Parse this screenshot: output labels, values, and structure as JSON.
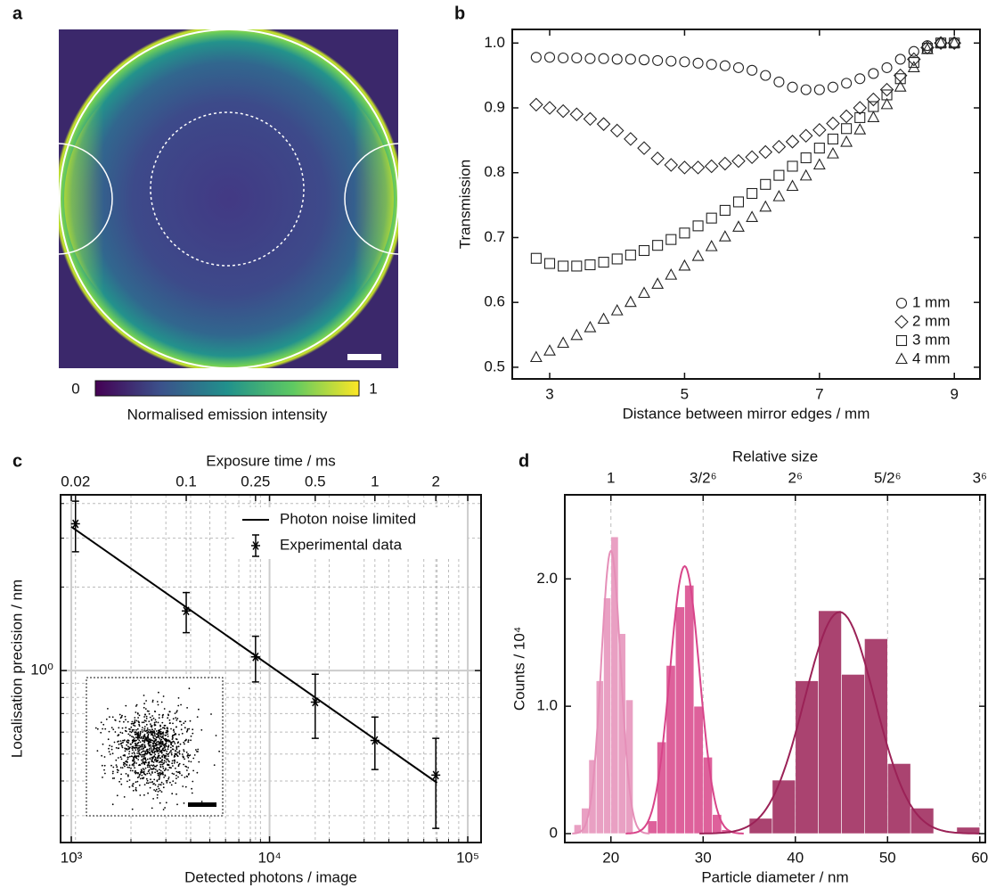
{
  "chart_data": [
    {
      "type": "heatmap",
      "panel_label": "a",
      "colorbar": {
        "ticks": [
          0,
          1
        ],
        "label": "Normalised emission intensity"
      }
    },
    {
      "type": "scatter",
      "panel_label": "b",
      "xlabel": "Distance between mirror edges / mm",
      "ylabel": "Transmission",
      "x": [
        2.8,
        3,
        3.2,
        3.4,
        3.6,
        3.8,
        4,
        4.2,
        4.4,
        4.6,
        4.8,
        5,
        5.2,
        5.4,
        5.6,
        5.8,
        6,
        6.2,
        6.4,
        6.6,
        6.8,
        7,
        7.2,
        7.4,
        7.6,
        7.8,
        8,
        8.2,
        8.4,
        8.6,
        8.8,
        9
      ],
      "series": [
        {
          "name": "1 mm",
          "marker": "circle",
          "color": "#222222",
          "values": [
            0.978,
            0.978,
            0.977,
            0.977,
            0.976,
            0.976,
            0.975,
            0.975,
            0.974,
            0.973,
            0.972,
            0.971,
            0.969,
            0.967,
            0.965,
            0.962,
            0.958,
            0.95,
            0.94,
            0.932,
            0.928,
            0.928,
            0.932,
            0.938,
            0.945,
            0.953,
            0.962,
            0.975,
            0.987,
            0.996,
            1,
            1
          ]
        },
        {
          "name": "2 mm",
          "marker": "diamond",
          "color": "#222222",
          "values": [
            0.905,
            0.9,
            0.895,
            0.89,
            0.883,
            0.875,
            0.865,
            0.852,
            0.838,
            0.822,
            0.812,
            0.808,
            0.808,
            0.81,
            0.814,
            0.818,
            0.824,
            0.832,
            0.84,
            0.848,
            0.857,
            0.866,
            0.876,
            0.887,
            0.9,
            0.913,
            0.928,
            0.95,
            0.975,
            0.993,
            1,
            1
          ]
        },
        {
          "name": "3 mm",
          "marker": "square",
          "color": "#222222",
          "values": [
            0.668,
            0.66,
            0.656,
            0.656,
            0.658,
            0.662,
            0.667,
            0.673,
            0.68,
            0.688,
            0.697,
            0.707,
            0.718,
            0.73,
            0.742,
            0.755,
            0.768,
            0.782,
            0.796,
            0.81,
            0.823,
            0.838,
            0.852,
            0.868,
            0.885,
            0.902,
            0.92,
            0.945,
            0.97,
            0.992,
            1,
            1
          ]
        },
        {
          "name": "4 mm",
          "marker": "triangle",
          "color": "#222222",
          "values": [
            0.515,
            0.525,
            0.537,
            0.549,
            0.561,
            0.574,
            0.587,
            0.6,
            0.614,
            0.628,
            0.642,
            0.656,
            0.671,
            0.686,
            0.701,
            0.716,
            0.731,
            0.747,
            0.763,
            0.779,
            0.795,
            0.812,
            0.829,
            0.847,
            0.866,
            0.885,
            0.905,
            0.932,
            0.962,
            0.99,
            1,
            1
          ]
        }
      ],
      "xlim": [
        2.445,
        9.38
      ],
      "xticks": [
        3,
        5,
        7,
        9
      ],
      "ylim": [
        0.482,
        1.021
      ],
      "yticks": [
        0.5,
        0.6,
        0.7,
        0.8,
        0.9,
        {
          "value": 1,
          "label": "1.0"
        }
      ],
      "legend": "lower right"
    },
    {
      "type": "errorbar",
      "panel_label": "c",
      "xlabel": "Detected photons / image",
      "ylabel": "Localisation precision / nm",
      "x2label": "Exposure time / ms",
      "xscale": "log",
      "yscale": "log",
      "grid": true,
      "xlim": [
        883,
        116700
      ],
      "xticks": [
        {
          "value": 1000,
          "label": "10³"
        },
        {
          "value": 10000,
          "label": "10⁴"
        },
        {
          "value": 100000,
          "label": "10⁵"
        }
      ],
      "xminorticks": [
        2000,
        3000,
        4000,
        5000,
        6000,
        7000,
        8000,
        9000,
        20000,
        30000,
        40000,
        50000,
        60000,
        70000,
        80000,
        90000
      ],
      "ylim": [
        0.24,
        4.3
      ],
      "yticks": [
        {
          "value": 1,
          "label": "10⁰"
        }
      ],
      "yminorticks": [
        0.3,
        0.4,
        0.5,
        0.6,
        0.7,
        0.8,
        0.9,
        2,
        3,
        4
      ],
      "series": [
        {
          "name": "Experimental data",
          "color": "#000000",
          "x": [
            1050,
            3800,
            8500,
            17000,
            34000,
            69000
          ],
          "exposure": [
            0.02,
            0.1,
            0.25,
            0.5,
            1,
            2
          ],
          "values": [
            3.38,
            1.64,
            1.12,
            0.77,
            0.56,
            0.42
          ],
          "errors": [
            0.7,
            0.27,
            0.21,
            0.2,
            0.12,
            0.15
          ]
        }
      ],
      "fit": {
        "name": "Photon noise limited",
        "color": "#000000",
        "x": [
          1000,
          70000
        ],
        "values": [
          3.3,
          0.394
        ]
      },
      "legend": "upper right"
    },
    {
      "type": "histogram",
      "panel_label": "d",
      "xlabel": "Particle diameter / nm",
      "ylabel": "Counts / 10⁴",
      "x2label": "Relative size",
      "xlim": [
        15,
        60.6
      ],
      "xticks": [
        20,
        30,
        40,
        50,
        60
      ],
      "x2lim": [
        0.75,
        3.03
      ],
      "x2ticks": [
        1,
        {
          "value": 1.5,
          "label": "3/2⁶"
        },
        {
          "value": 2,
          "label": "2⁶"
        },
        {
          "value": 2.5,
          "label": "5/2⁶"
        },
        {
          "value": 3,
          "label": "3⁶"
        }
      ],
      "ylim": [
        -0.07,
        2.66
      ],
      "yticks": [
        0,
        {
          "value": 1,
          "label": "1.0"
        },
        {
          "value": 2,
          "label": "2.0"
        }
      ],
      "grid": true,
      "series": [
        {
          "color": "#e58fb8",
          "bins": [
            16,
            16.8,
            17.6,
            18.4,
            19.2,
            20,
            20.8,
            21.6,
            22.4
          ],
          "values": [
            0.07,
            0.2,
            0.58,
            1.2,
            1.85,
            2.33,
            1.57,
            1.05
          ],
          "fit": {
            "mean": 20,
            "sigma": 1.05,
            "peak": 2.22
          }
        },
        {
          "color": "#d8458a",
          "bins": [
            24,
            25,
            26,
            27,
            28,
            29,
            30,
            31,
            32,
            33
          ],
          "values": [
            0.1,
            0.72,
            1.32,
            1.78,
            1.95,
            1.0,
            0.6,
            0.15,
            0.03
          ],
          "fit": {
            "mean": 28,
            "sigma": 1.6,
            "peak": 2.1
          }
        },
        {
          "color": "#9b2257",
          "bins": [
            35,
            37.5,
            40,
            42.5,
            45,
            47.5,
            50,
            52.5,
            55,
            57.5,
            60
          ],
          "values": [
            0.12,
            0.42,
            1.2,
            1.75,
            1.25,
            1.53,
            0.55,
            0.2,
            0,
            0.05
          ],
          "fit": {
            "mean": 44.8,
            "sigma": 3.8,
            "peak": 1.74
          }
        }
      ]
    }
  ]
}
